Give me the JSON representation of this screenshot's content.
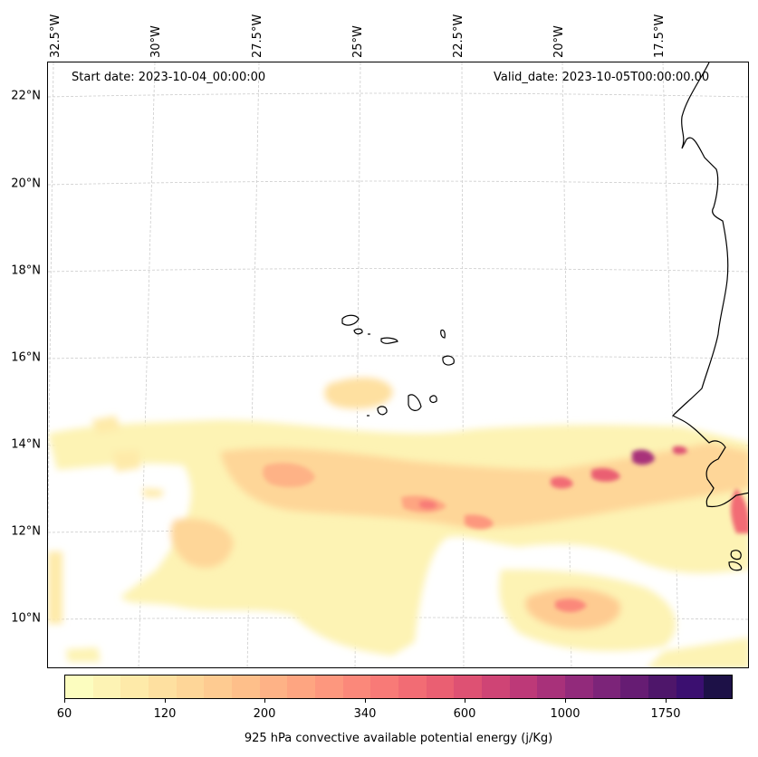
{
  "map": {
    "start_date_label": "Start date: 2023-10-04_00:00:00",
    "valid_date_label": "Valid_date: 2023-10-05T00:00:00.00",
    "lat_labels": [
      "22°N",
      "20°N",
      "18°N",
      "16°N",
      "14°N",
      "12°N",
      "10°N"
    ],
    "lon_labels": [
      "32.5°W",
      "30°W",
      "27.5°W",
      "25°W",
      "22.5°W",
      "20°W",
      "17.5°W"
    ],
    "grid": true,
    "coastline_color": "#000000",
    "gridline_color": "#cccccc"
  },
  "colorbar": {
    "label": "925 hPa convective available potential energy (j/Kg)",
    "tick_labels": [
      "60",
      "120",
      "200",
      "340",
      "600",
      "1000",
      "1750"
    ],
    "colormap": "magma_r",
    "colors": [
      "#fcfdbf",
      "#fdf3b4",
      "#feeaa9",
      "#fee0a0",
      "#fed698",
      "#fecb91",
      "#febf8a",
      "#feb286",
      "#fea581",
      "#fd977e",
      "#fb887a",
      "#f87a77",
      "#f26c74",
      "#ea5f72",
      "#de5173",
      "#cf4475",
      "#bd3978",
      "#a8317a",
      "#922a7b",
      "#7c2479",
      "#661c73",
      "#4e166a",
      "#3b0f70",
      "#1d1147"
    ]
  }
}
